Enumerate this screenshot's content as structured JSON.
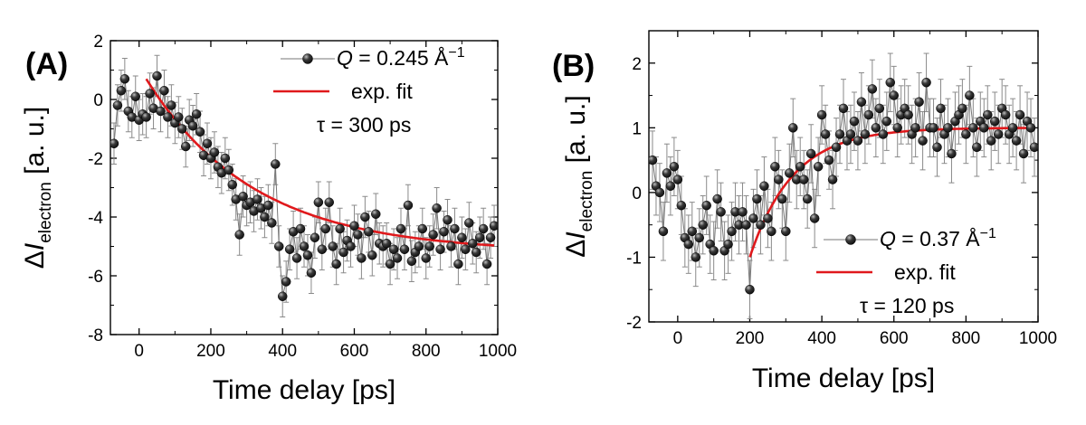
{
  "chart_data": [
    {
      "type": "scatter",
      "panel_label": "(A)",
      "xlabel": "Time delay [ps]",
      "ylabel": {
        "prefix": "Δ",
        "main": "I",
        "sub": "electron",
        "suffix": " [a. u.]"
      },
      "xlim": [
        -80,
        1000
      ],
      "ylim": [
        -8,
        2
      ],
      "xticks": [
        0,
        200,
        400,
        600,
        800,
        1000
      ],
      "yticks": [
        -8,
        -6,
        -4,
        -2,
        0,
        2
      ],
      "legend": {
        "position": "top-right",
        "data_label": "Q = 0.245 Å⁻¹",
        "data_q": "Q",
        "data_rest": " = 0.245 Å",
        "data_sup": "−1",
        "fit_label": "exp. fit",
        "tau_label": "τ = 300 ps"
      },
      "colors": {
        "fit": "#e0191c",
        "marker": "#111111",
        "errorbar": "#8a8a8a",
        "data_line": "#777777"
      },
      "fit": {
        "model": "exponential",
        "t0": 20,
        "y0": 0.7,
        "y_inf": -5.2,
        "tau": 300,
        "x_start": 20,
        "x_end": 990
      },
      "series": [
        {
          "name": "data",
          "x": [
            -70,
            -60,
            -50,
            -40,
            -30,
            -20,
            -10,
            0,
            10,
            20,
            30,
            40,
            50,
            60,
            70,
            80,
            90,
            100,
            110,
            120,
            130,
            140,
            150,
            160,
            170,
            180,
            190,
            200,
            210,
            220,
            230,
            240,
            250,
            260,
            270,
            280,
            290,
            300,
            310,
            320,
            330,
            340,
            350,
            360,
            370,
            380,
            390,
            400,
            410,
            420,
            430,
            440,
            450,
            460,
            470,
            480,
            490,
            500,
            510,
            520,
            530,
            540,
            550,
            560,
            570,
            580,
            590,
            600,
            610,
            620,
            630,
            640,
            650,
            660,
            670,
            680,
            690,
            700,
            710,
            720,
            730,
            740,
            750,
            760,
            770,
            780,
            790,
            800,
            810,
            820,
            830,
            840,
            850,
            860,
            870,
            880,
            890,
            900,
            910,
            920,
            930,
            940,
            950,
            960,
            970,
            980,
            990
          ],
          "y": [
            -1.5,
            -0.2,
            0.3,
            0.7,
            -0.4,
            -0.6,
            0.1,
            -0.7,
            -0.5,
            -0.6,
            0.2,
            -0.3,
            0.8,
            -0.4,
            0.3,
            -0.6,
            -0.2,
            -0.8,
            -0.6,
            -1.0,
            -1.6,
            -0.7,
            -0.9,
            -0.5,
            -1.1,
            -1.9,
            -1.5,
            -2.0,
            -1.8,
            -2.3,
            -2.5,
            -2.0,
            -2.4,
            -2.9,
            -3.4,
            -4.6,
            -3.3,
            -3.6,
            -3.5,
            -3.8,
            -3.4,
            -3.7,
            -4.0,
            -3.6,
            -4.2,
            -2.2,
            -5.0,
            -6.7,
            -6.2,
            -5.1,
            -4.5,
            -5.4,
            -4.4,
            -5.0,
            -5.3,
            -5.9,
            -4.7,
            -3.5,
            -5.1,
            -4.4,
            -3.5,
            -5.0,
            -5.6,
            -4.4,
            -5.2,
            -4.8,
            -5.0,
            -4.3,
            -4.6,
            -5.4,
            -4.0,
            -4.5,
            -5.3,
            -3.9,
            -4.9,
            -5.0,
            -4.9,
            -5.6,
            -5.1,
            -5.4,
            -4.4,
            -5.1,
            -3.6,
            -5.5,
            -5.2,
            -5.0,
            -4.4,
            -5.4,
            -5.0,
            -4.6,
            -3.7,
            -5.1,
            -4.5,
            -4.1,
            -5.0,
            -4.4,
            -5.6,
            -4.7,
            -5.1,
            -4.2,
            -4.9,
            -5.2,
            -4.7,
            -4.4,
            -5.6,
            -4.7,
            -4.3
          ],
          "err": 0.7
        }
      ]
    },
    {
      "type": "scatter",
      "panel_label": "(B)",
      "xlabel": "Time delay [ps]",
      "ylabel": {
        "prefix": "Δ",
        "main": "I",
        "sub": "electron",
        "suffix": " [a. u.]"
      },
      "xlim": [
        -80,
        1000
      ],
      "ylim": [
        -2,
        2.5
      ],
      "xticks": [
        0,
        200,
        400,
        600,
        800,
        1000
      ],
      "yticks": [
        -2,
        -1,
        0,
        1,
        2
      ],
      "legend": {
        "position": "bottom-right",
        "data_label": "Q = 0.37 Å⁻¹",
        "data_q": "Q",
        "data_rest": " = 0.37 Å",
        "data_sup": "−1",
        "fit_label": "exp. fit",
        "tau_label": "τ = 120 ps"
      },
      "colors": {
        "fit": "#e0191c",
        "marker": "#111111",
        "errorbar": "#8a8a8a",
        "data_line": "#777777"
      },
      "fit": {
        "model": "exponential",
        "t0": 200,
        "y0": -1.0,
        "y_inf": 1.0,
        "tau": 120,
        "x_start": 200,
        "x_end": 990
      },
      "series": [
        {
          "name": "data",
          "x": [
            -70,
            -60,
            -50,
            -40,
            -30,
            -20,
            -10,
            0,
            10,
            20,
            30,
            40,
            50,
            60,
            70,
            80,
            90,
            100,
            110,
            120,
            130,
            140,
            150,
            160,
            170,
            180,
            190,
            200,
            210,
            220,
            230,
            240,
            250,
            260,
            270,
            280,
            290,
            300,
            310,
            320,
            330,
            340,
            350,
            360,
            370,
            380,
            390,
            400,
            410,
            420,
            430,
            440,
            450,
            460,
            470,
            480,
            490,
            500,
            510,
            520,
            530,
            540,
            550,
            560,
            570,
            580,
            590,
            600,
            610,
            620,
            630,
            640,
            650,
            660,
            670,
            680,
            690,
            700,
            710,
            720,
            730,
            740,
            750,
            760,
            770,
            780,
            790,
            800,
            810,
            820,
            830,
            840,
            850,
            860,
            870,
            880,
            890,
            900,
            910,
            920,
            930,
            940,
            950,
            960,
            970,
            980,
            990
          ],
          "y": [
            0.5,
            0.1,
            0.0,
            -0.6,
            0.3,
            0.1,
            0.4,
            0.2,
            -0.2,
            -0.7,
            -0.8,
            -0.6,
            -1.0,
            -0.7,
            -0.5,
            -0.2,
            -0.8,
            -0.9,
            -0.1,
            -0.3,
            -0.9,
            -0.8,
            -0.6,
            -0.3,
            -0.5,
            -0.3,
            -0.5,
            -1.5,
            -0.4,
            -0.1,
            -0.5,
            0.1,
            -0.4,
            -0.6,
            0.4,
            0.2,
            -0.1,
            -0.6,
            0.3,
            1.0,
            0.2,
            0.4,
            0.2,
            -0.1,
            0.6,
            -0.4,
            0.4,
            1.2,
            0.9,
            0.5,
            0.2,
            0.7,
            0.9,
            1.3,
            0.8,
            0.9,
            1.1,
            0.8,
            1.4,
            0.9,
            1.2,
            1.6,
            1.0,
            1.3,
            0.9,
            1.1,
            1.7,
            1.5,
            1.0,
            1.2,
            1.3,
            1.2,
            0.9,
            1.0,
            1.4,
            0.8,
            1.7,
            1.0,
            1.0,
            0.7,
            1.3,
            0.9,
            1.0,
            0.6,
            1.1,
            1.2,
            1.3,
            0.9,
            1.5,
            1.0,
            0.7,
            1.1,
            1.0,
            1.2,
            0.8,
            1.1,
            0.9,
            1.3,
            1.2,
            0.9,
            1.0,
            0.8,
            1.2,
            0.6,
            1.1,
            1.0,
            0.7
          ],
          "err": 0.45
        }
      ]
    }
  ]
}
